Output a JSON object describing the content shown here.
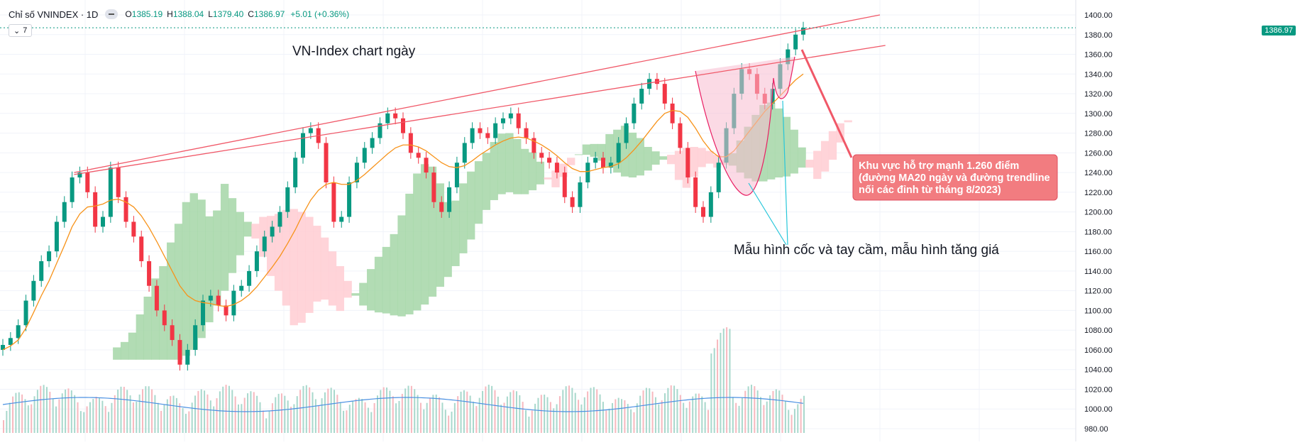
{
  "header": {
    "symbol": "Chỉ số VNINDEX · 1D",
    "open_label": "O",
    "open": "1385.19",
    "high_label": "H",
    "high": "1388.04",
    "low_label": "L",
    "low": "1379.40",
    "close_label": "C",
    "close": "1386.97",
    "change": "+5.01 (+0.36%)",
    "collapse_label": "7"
  },
  "last_price_tag": "1386.97",
  "annotations": {
    "chart_title": "VN-Index chart ngày",
    "pattern_note": "Mẫu hình cốc và tay cầm, mẫu hình tăng giá",
    "support_note_lines": [
      "Khu vực hỗ trợ mạnh 1.260 điểm",
      "(đường MA20 ngày và đường trendline",
      " nối các đỉnh từ tháng 8/2023)"
    ]
  },
  "colors": {
    "up": "#089981",
    "down": "#f23645",
    "ma": "#f7931a",
    "volume_ma": "#4a90e2",
    "cloud_green": "#a5d6a7",
    "cloud_red": "#ffcdd2",
    "trendline": "#f05868",
    "cup_fill": "#f8bbd0",
    "note_box": "#f27c80"
  },
  "chart_data": {
    "type": "line",
    "title": "VN-Index chart ngày",
    "xlabel": "",
    "ylabel": "",
    "ylim": [
      980,
      1400
    ],
    "y_ticks": [
      1400,
      1380,
      1360,
      1340,
      1320,
      1300,
      1280,
      1260,
      1240,
      1220,
      1200,
      1180,
      1160,
      1140,
      1120,
      1100,
      1080,
      1060,
      1040,
      1020,
      1000,
      980
    ],
    "series": [
      {
        "key": "price",
        "values": [
          1065,
          1072,
          1085,
          1110,
          1130,
          1150,
          1160,
          1190,
          1210,
          1235,
          1240,
          1220,
          1185,
          1195,
          1245,
          1215,
          1190,
          1175,
          1150,
          1125,
          1100,
          1085,
          1070,
          1045,
          1060,
          1085,
          1110,
          1115,
          1105,
          1095,
          1120,
          1125,
          1140,
          1160,
          1175,
          1185,
          1200,
          1225,
          1255,
          1280,
          1285,
          1270,
          1230,
          1190,
          1195,
          1230,
          1250,
          1265,
          1275,
          1290,
          1300,
          1295,
          1280,
          1260,
          1255,
          1240,
          1210,
          1200,
          1225,
          1250,
          1270,
          1285,
          1280,
          1275,
          1290,
          1295,
          1300,
          1285,
          1275,
          1260,
          1255,
          1250,
          1240,
          1215,
          1205,
          1230,
          1250,
          1255,
          1245,
          1250,
          1270,
          1290,
          1310,
          1325,
          1335,
          1330,
          1310,
          1290,
          1265,
          1235,
          1205,
          1195,
          1220,
          1250,
          1285,
          1320,
          1345,
          1340,
          1320,
          1310,
          1325,
          1350,
          1365,
          1380,
          1386.97
        ]
      },
      {
        "key": "ma20",
        "values": [
          1060,
          1064,
          1070,
          1082,
          1098,
          1115,
          1130,
          1148,
          1166,
          1185,
          1198,
          1205,
          1206,
          1208,
          1212,
          1213,
          1210,
          1205,
          1196,
          1184,
          1170,
          1155,
          1140,
          1125,
          1115,
          1110,
          1108,
          1107,
          1105,
          1104,
          1106,
          1110,
          1116,
          1124,
          1134,
          1144,
          1155,
          1168,
          1182,
          1198,
          1212,
          1222,
          1228,
          1230,
          1228,
          1228,
          1232,
          1238,
          1245,
          1252,
          1259,
          1265,
          1268,
          1268,
          1266,
          1262,
          1256,
          1250,
          1246,
          1245,
          1247,
          1252,
          1258,
          1263,
          1268,
          1272,
          1275,
          1276,
          1275,
          1272,
          1268,
          1263,
          1257,
          1250,
          1244,
          1241,
          1241,
          1243,
          1245,
          1246,
          1249,
          1255,
          1263,
          1272,
          1282,
          1292,
          1300,
          1303,
          1302,
          1296,
          1285,
          1272,
          1262,
          1256,
          1256,
          1262,
          1272,
          1282,
          1292,
          1302,
          1310,
          1318,
          1326,
          1334,
          1340
        ]
      }
    ],
    "trendlines": [
      {
        "x": [
          0.065,
          0.8
        ],
        "y": [
          1240,
          1400
        ]
      },
      {
        "x": [
          0.065,
          0.805
        ],
        "y": [
          1238,
          1369
        ]
      }
    ]
  }
}
